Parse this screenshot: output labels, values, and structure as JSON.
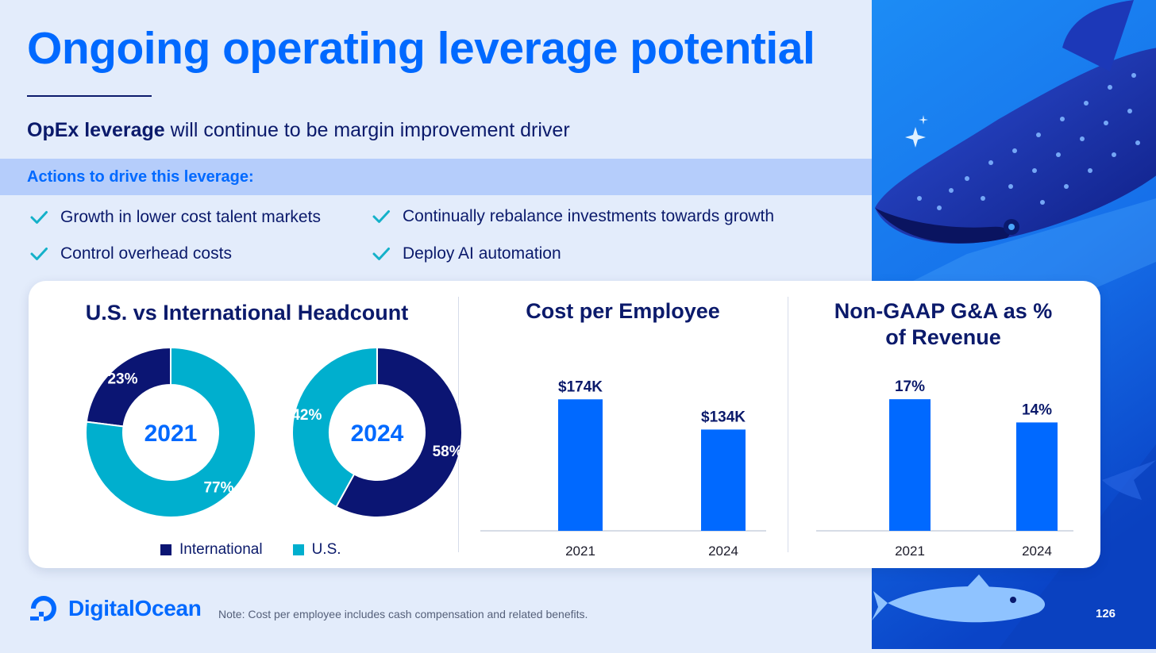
{
  "title": "Ongoing operating leverage potential",
  "subtitle": {
    "bold": "OpEx leverage",
    "rest": " will continue to be margin improvement driver"
  },
  "actions_heading": "Actions to drive this leverage:",
  "actions": [
    "Growth in lower cost talent markets",
    "Continually rebalance investments towards growth",
    "Control overhead costs",
    "Deploy AI automation"
  ],
  "colors": {
    "brand_blue": "#0069ff",
    "navy": "#0b1a6b",
    "international": "#0b1573",
    "us": "#00afce",
    "bar": "#0069ff",
    "check": "#14b1c9"
  },
  "icons": [
    "check-icon",
    "digitalocean-logo-icon",
    "whale-shark-illustration"
  ],
  "chart_data": [
    {
      "type": "pie",
      "title": "U.S. vs International Headcount",
      "legend": [
        "International",
        "U.S."
      ],
      "legend_position": "bottom",
      "donuts": [
        {
          "center_label": "2021",
          "slices": [
            {
              "name": "International",
              "value": 23,
              "label": "23%"
            },
            {
              "name": "U.S.",
              "value": 77,
              "label": "77%"
            }
          ]
        },
        {
          "center_label": "2024",
          "slices": [
            {
              "name": "International",
              "value": 58,
              "label": "58%"
            },
            {
              "name": "U.S.",
              "value": 42,
              "label": "42%"
            }
          ]
        }
      ]
    },
    {
      "type": "bar",
      "title": "Cost per Employee",
      "categories": [
        "2021",
        "2024"
      ],
      "values": [
        174,
        134
      ],
      "labels": [
        "$174K",
        "$134K"
      ],
      "ylim": [
        0,
        210
      ],
      "grid": false
    },
    {
      "type": "bar",
      "title_lines": [
        "Non-GAAP G&A as %",
        "of Revenue"
      ],
      "categories": [
        "2021",
        "2024"
      ],
      "values": [
        17,
        14
      ],
      "labels": [
        "17%",
        "14%"
      ],
      "ylim": [
        0,
        20.5
      ],
      "grid": false
    }
  ],
  "logo_text": "DigitalOcean",
  "note": "Note: Cost per employee includes cash compensation and related benefits.",
  "page_number": "126"
}
